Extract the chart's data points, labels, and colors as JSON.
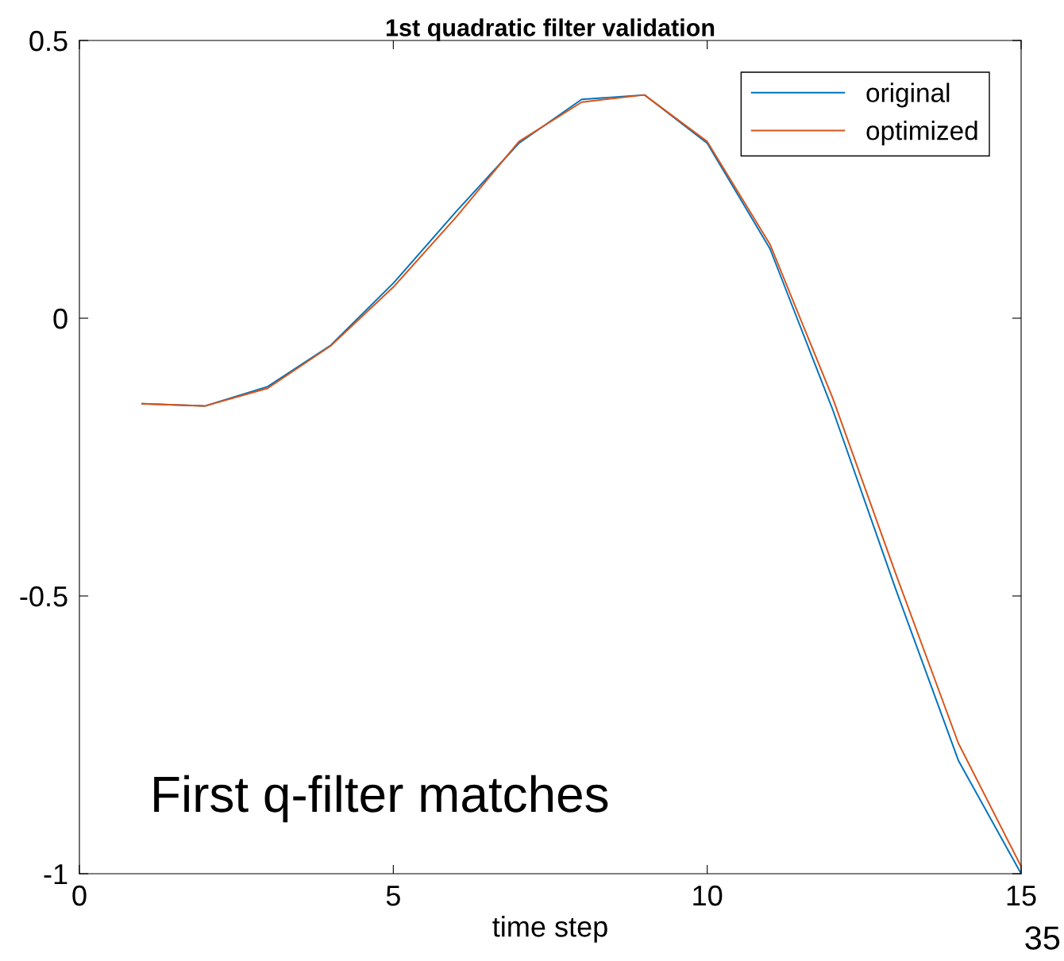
{
  "chart_data": {
    "type": "line",
    "title": "1st quadratic filter validation",
    "xlabel": "time step",
    "x": [
      1,
      2,
      3,
      4,
      5,
      6,
      7,
      8,
      9,
      10,
      11,
      12,
      13,
      14,
      15
    ],
    "series": [
      {
        "name": "original",
        "color": "#0072bd",
        "values": [
          -0.154,
          -0.158,
          -0.123,
          -0.049,
          0.063,
          0.192,
          0.315,
          0.394,
          0.402,
          0.315,
          0.125,
          -0.165,
          -0.487,
          -0.796,
          -1.0
        ]
      },
      {
        "name": "optimized",
        "color": "#d95319",
        "values": [
          -0.154,
          -0.158,
          -0.126,
          -0.05,
          0.056,
          0.182,
          0.318,
          0.389,
          0.402,
          0.318,
          0.133,
          -0.144,
          -0.459,
          -0.765,
          -0.987
        ]
      }
    ],
    "xlim": [
      0,
      15
    ],
    "xticks": [
      0,
      5,
      10,
      15
    ],
    "ylim": [
      -1,
      0.5
    ],
    "yticks": [
      {
        "value": -1,
        "label": "-1"
      },
      {
        "value": -0.5,
        "label": "-0.5"
      },
      0,
      0.5
    ],
    "grid": false,
    "legend": "top right",
    "marker": "none",
    "line_style": "solid",
    "annotations": [
      "First q-filter matches",
      "35"
    ]
  }
}
